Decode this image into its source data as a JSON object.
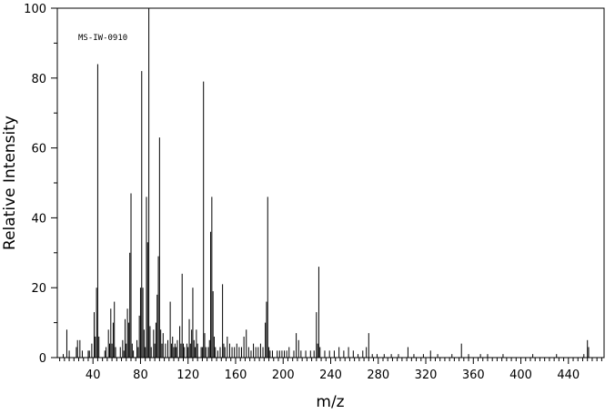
{
  "chart_data": {
    "type": "bar",
    "title": "",
    "annotation": "MS-IW-0910",
    "xlabel": "m/z",
    "ylabel": "Relative Intensity",
    "xlim": [
      10,
      470
    ],
    "ylim": [
      0,
      100
    ],
    "x_ticks": [
      40,
      80,
      120,
      160,
      200,
      240,
      280,
      320,
      360,
      400,
      440
    ],
    "y_ticks": [
      0,
      20,
      40,
      60,
      80,
      100
    ],
    "grid": false,
    "legend": "none",
    "bar_color": "#000000",
    "peaks": [
      [
        15,
        1
      ],
      [
        18,
        8
      ],
      [
        20,
        2
      ],
      [
        26,
        3
      ],
      [
        27,
        5
      ],
      [
        29,
        5
      ],
      [
        31,
        2
      ],
      [
        36,
        2
      ],
      [
        37,
        2
      ],
      [
        39,
        4
      ],
      [
        41,
        13
      ],
      [
        42,
        6
      ],
      [
        43,
        20
      ],
      [
        44,
        84
      ],
      [
        45,
        6
      ],
      [
        50,
        2
      ],
      [
        51,
        3
      ],
      [
        53,
        8
      ],
      [
        54,
        4
      ],
      [
        55,
        14
      ],
      [
        56,
        4
      ],
      [
        57,
        10
      ],
      [
        58,
        16
      ],
      [
        59,
        3
      ],
      [
        63,
        3
      ],
      [
        65,
        5
      ],
      [
        66,
        2
      ],
      [
        67,
        11
      ],
      [
        68,
        4
      ],
      [
        69,
        14
      ],
      [
        70,
        10
      ],
      [
        71,
        30
      ],
      [
        72,
        47
      ],
      [
        73,
        4
      ],
      [
        74,
        2
      ],
      [
        77,
        5
      ],
      [
        78,
        3
      ],
      [
        79,
        12
      ],
      [
        80,
        20
      ],
      [
        81,
        82
      ],
      [
        82,
        20
      ],
      [
        83,
        8
      ],
      [
        84,
        3
      ],
      [
        85,
        46
      ],
      [
        86,
        33
      ],
      [
        87,
        100
      ],
      [
        88,
        9
      ],
      [
        89,
        3
      ],
      [
        91,
        8
      ],
      [
        92,
        4
      ],
      [
        93,
        10
      ],
      [
        94,
        18
      ],
      [
        95,
        29
      ],
      [
        96,
        63
      ],
      [
        97,
        8
      ],
      [
        98,
        4
      ],
      [
        99,
        7
      ],
      [
        101,
        4
      ],
      [
        103,
        5
      ],
      [
        105,
        16
      ],
      [
        106,
        4
      ],
      [
        107,
        6
      ],
      [
        108,
        3
      ],
      [
        109,
        4
      ],
      [
        110,
        3
      ],
      [
        111,
        5
      ],
      [
        113,
        9
      ],
      [
        114,
        4
      ],
      [
        115,
        24
      ],
      [
        116,
        4
      ],
      [
        117,
        3
      ],
      [
        119,
        4
      ],
      [
        120,
        3
      ],
      [
        121,
        11
      ],
      [
        122,
        4
      ],
      [
        123,
        8
      ],
      [
        124,
        20
      ],
      [
        125,
        5
      ],
      [
        126,
        3
      ],
      [
        127,
        8
      ],
      [
        128,
        4
      ],
      [
        131,
        3
      ],
      [
        132,
        3
      ],
      [
        133,
        79
      ],
      [
        134,
        7
      ],
      [
        135,
        3
      ],
      [
        137,
        3
      ],
      [
        138,
        5
      ],
      [
        139,
        36
      ],
      [
        140,
        46
      ],
      [
        141,
        19
      ],
      [
        142,
        6
      ],
      [
        143,
        3
      ],
      [
        145,
        2
      ],
      [
        147,
        3
      ],
      [
        149,
        21
      ],
      [
        150,
        4
      ],
      [
        151,
        3
      ],
      [
        153,
        6
      ],
      [
        155,
        4
      ],
      [
        157,
        3
      ],
      [
        159,
        3
      ],
      [
        161,
        4
      ],
      [
        163,
        3
      ],
      [
        165,
        3
      ],
      [
        167,
        6
      ],
      [
        169,
        8
      ],
      [
        171,
        3
      ],
      [
        173,
        2
      ],
      [
        175,
        4
      ],
      [
        177,
        3
      ],
      [
        179,
        3
      ],
      [
        181,
        4
      ],
      [
        183,
        3
      ],
      [
        185,
        10
      ],
      [
        186,
        16
      ],
      [
        187,
        46
      ],
      [
        188,
        3
      ],
      [
        189,
        2
      ],
      [
        191,
        2
      ],
      [
        195,
        2
      ],
      [
        197,
        2
      ],
      [
        199,
        2
      ],
      [
        201,
        2
      ],
      [
        203,
        2
      ],
      [
        205,
        3
      ],
      [
        209,
        2
      ],
      [
        211,
        7
      ],
      [
        213,
        5
      ],
      [
        215,
        2
      ],
      [
        219,
        2
      ],
      [
        223,
        2
      ],
      [
        226,
        2
      ],
      [
        228,
        13
      ],
      [
        229,
        4
      ],
      [
        230,
        26
      ],
      [
        231,
        3
      ],
      [
        235,
        2
      ],
      [
        239,
        2
      ],
      [
        243,
        2
      ],
      [
        247,
        3
      ],
      [
        251,
        2
      ],
      [
        255,
        3
      ],
      [
        259,
        2
      ],
      [
        263,
        1
      ],
      [
        267,
        2
      ],
      [
        270,
        3
      ],
      [
        272,
        7
      ],
      [
        275,
        1
      ],
      [
        279,
        1
      ],
      [
        285,
        1
      ],
      [
        291,
        1
      ],
      [
        297,
        1
      ],
      [
        305,
        3
      ],
      [
        310,
        1
      ],
      [
        318,
        1
      ],
      [
        324,
        2
      ],
      [
        330,
        1
      ],
      [
        342,
        1
      ],
      [
        350,
        4
      ],
      [
        356,
        1
      ],
      [
        366,
        1
      ],
      [
        372,
        1
      ],
      [
        385,
        1
      ],
      [
        410,
        1
      ],
      [
        430,
        1
      ],
      [
        453,
        1
      ],
      [
        456,
        5
      ],
      [
        457,
        3
      ]
    ]
  }
}
